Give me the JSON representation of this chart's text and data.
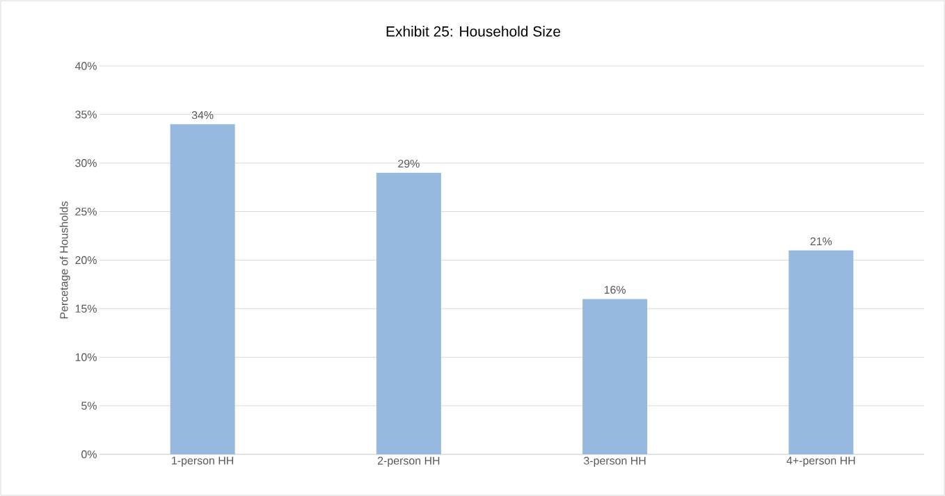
{
  "chart_data": {
    "type": "bar",
    "title": "Exhibit 25: Household Size",
    "ylabel": "Percetage of Housholds",
    "categories": [
      "1-person HH",
      "2-person HH",
      "3-person HH",
      "4+-person HH"
    ],
    "values": [
      34,
      29,
      16,
      21
    ],
    "value_labels": [
      "34%",
      "29%",
      "16%",
      "21%"
    ],
    "color": "#97b8df",
    "ylim": [
      0,
      40
    ],
    "yticks": [
      {
        "value": 0,
        "label": "0%"
      },
      {
        "value": 5,
        "label": "5%"
      },
      {
        "value": 10,
        "label": "10%"
      },
      {
        "value": 15,
        "label": "15%"
      },
      {
        "value": 20,
        "label": "20%"
      },
      {
        "value": 25,
        "label": "25%"
      },
      {
        "value": 30,
        "label": "30%"
      },
      {
        "value": 35,
        "label": "35%"
      },
      {
        "value": 40,
        "label": "40%"
      }
    ],
    "grid": "y"
  }
}
